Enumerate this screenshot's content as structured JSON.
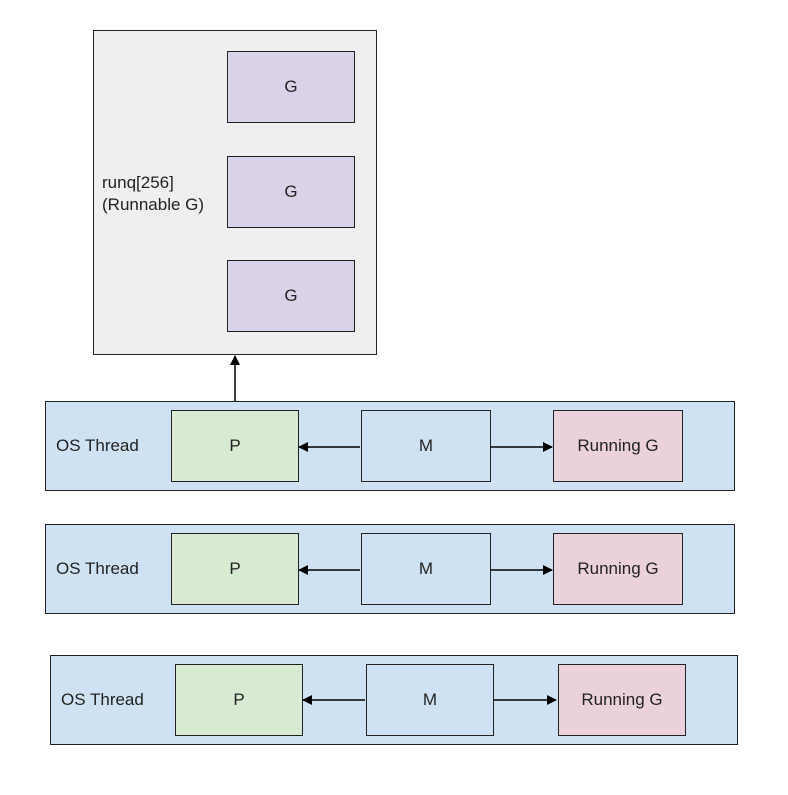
{
  "runq": {
    "label": "runq[256]\n(Runnable G)",
    "items": [
      "G",
      "G",
      "G"
    ]
  },
  "threads": [
    {
      "label": "OS Thread",
      "p": "P",
      "m": "M",
      "running": "Running G"
    },
    {
      "label": "OS Thread",
      "p": "P",
      "m": "M",
      "running": "Running G"
    },
    {
      "label": "OS Thread",
      "p": "P",
      "m": "M",
      "running": "Running G"
    }
  ],
  "colors": {
    "runq_bg": "#efefef",
    "g_fill": "#d9d2e9",
    "thread_bg": "#cfe2f3",
    "p_fill": "#d9ead3",
    "running_fill": "#ead1dc"
  }
}
